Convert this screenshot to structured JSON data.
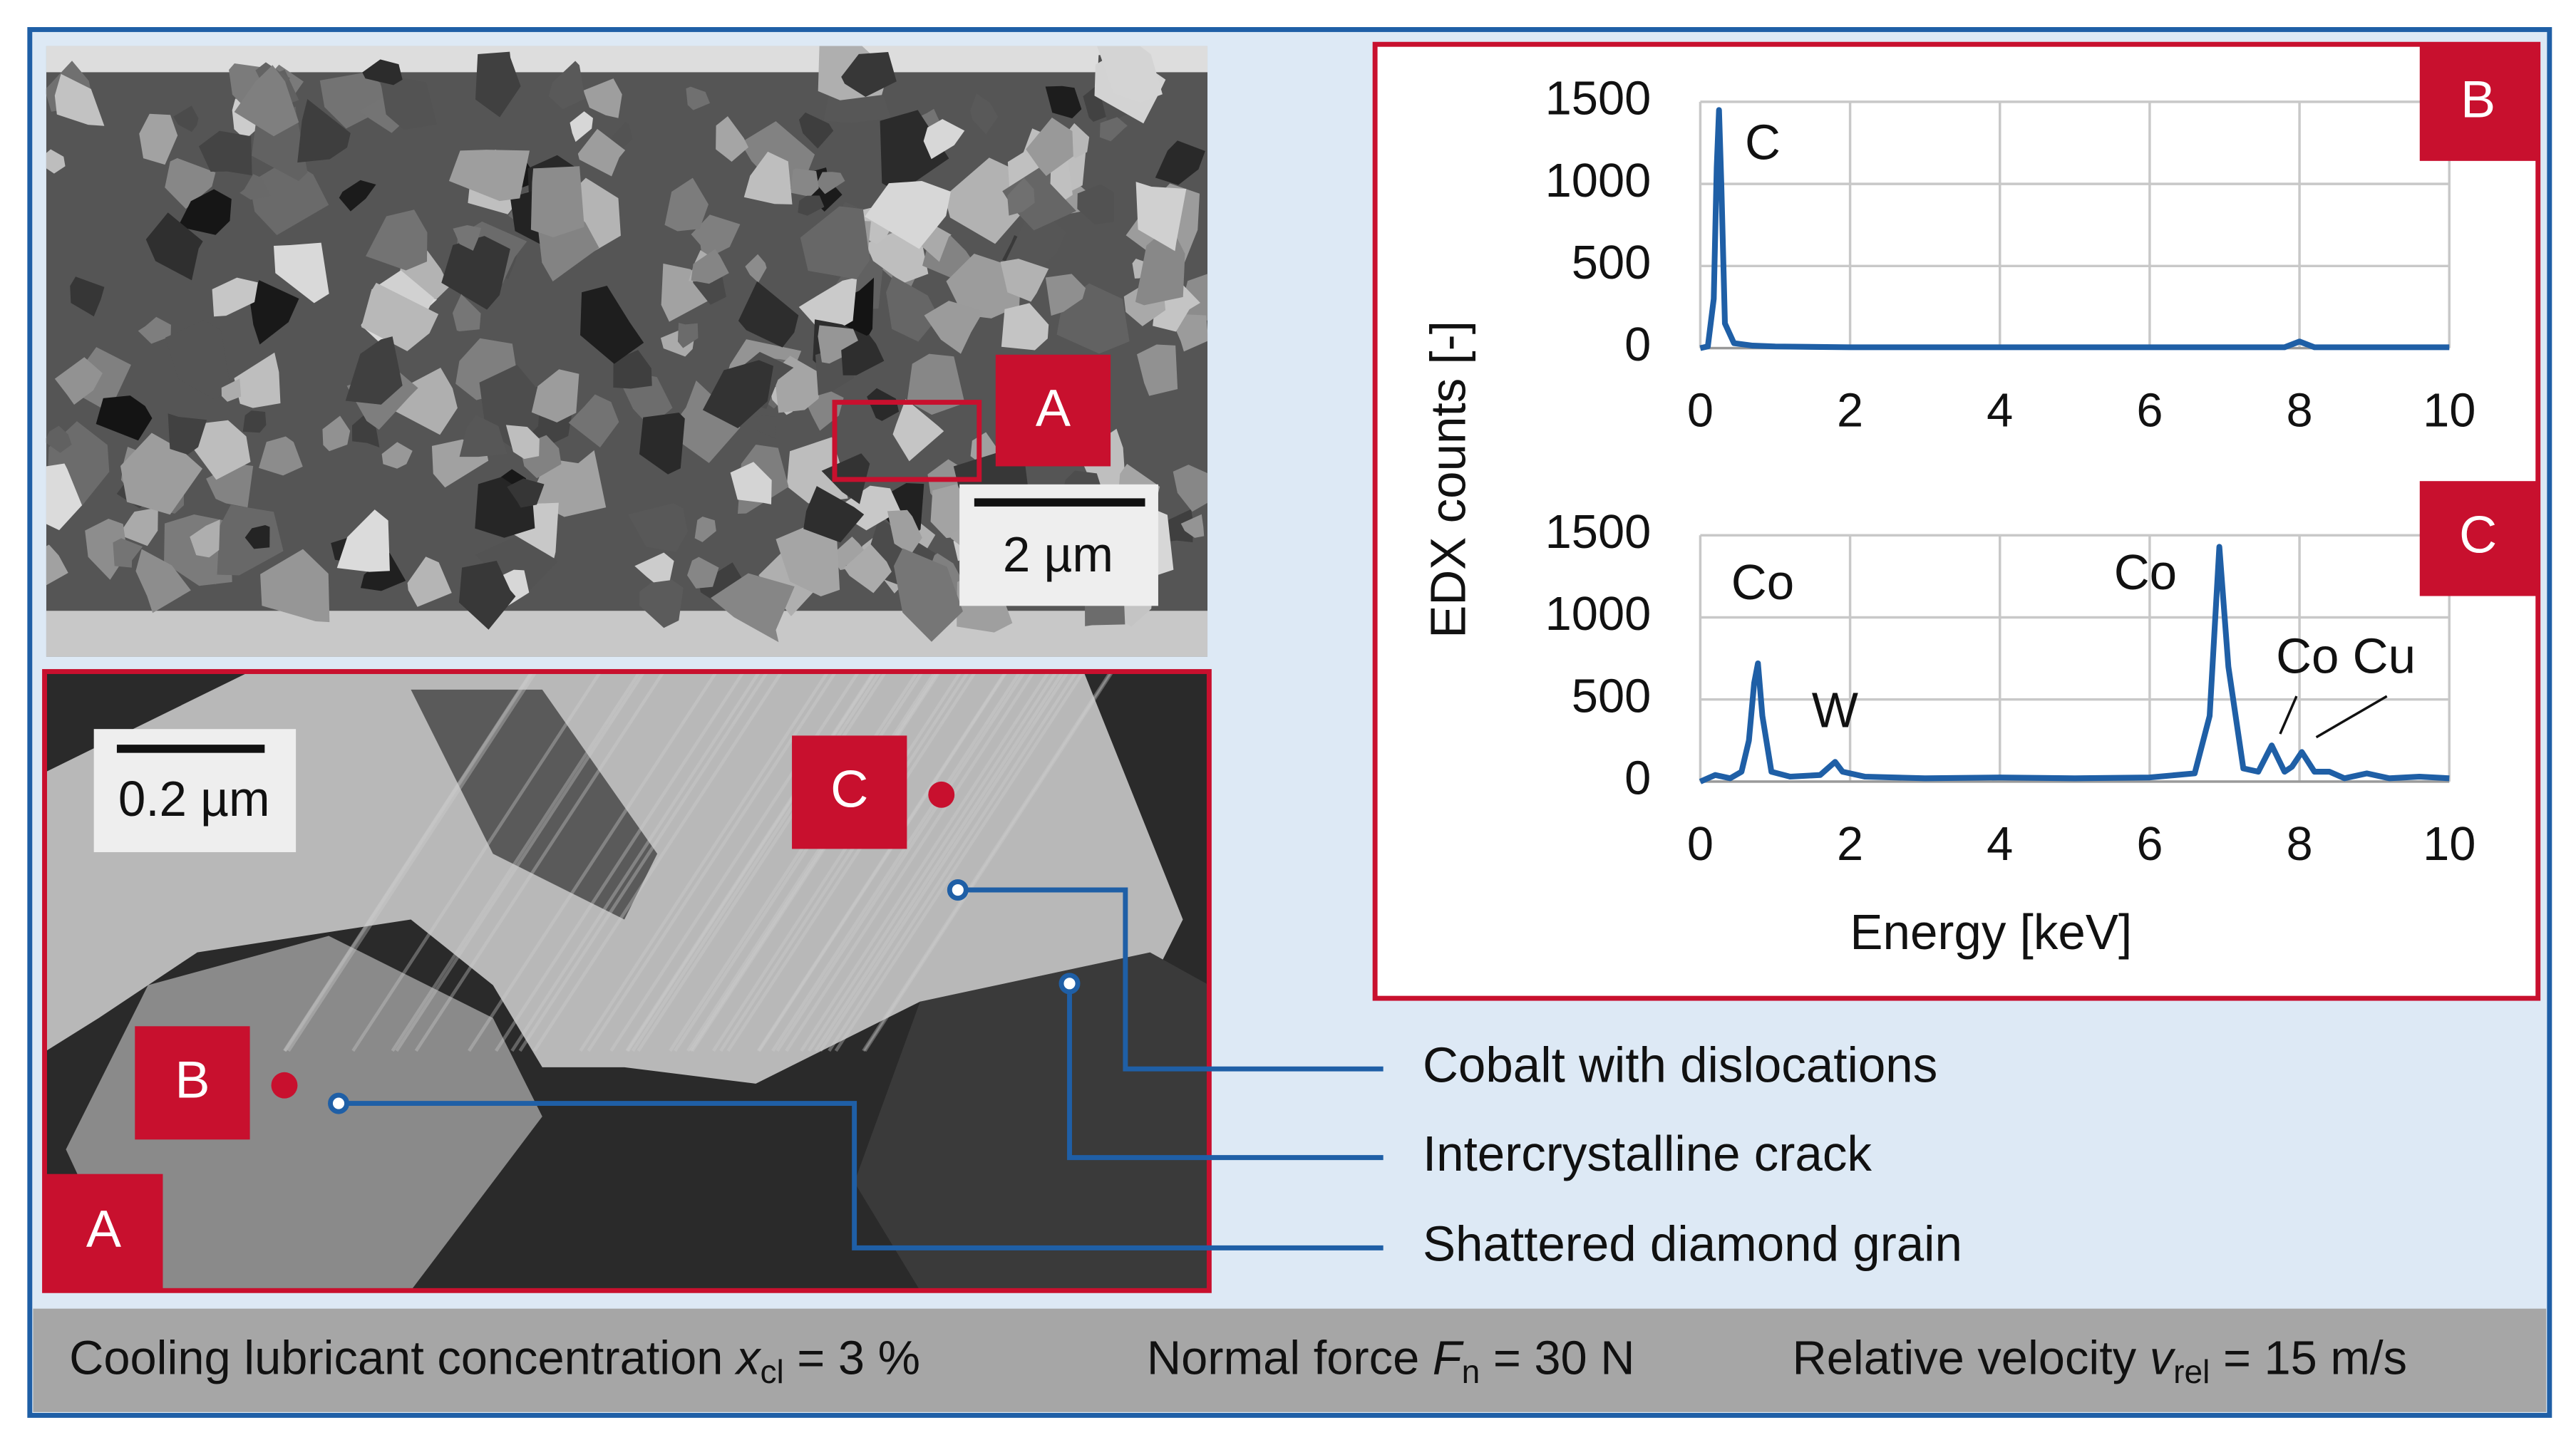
{
  "chart_data": [
    {
      "type": "line",
      "panel": "B",
      "ylabel": "EDX counts [-]",
      "x": [
        0,
        0.1,
        0.18,
        0.22,
        0.25,
        0.28,
        0.33,
        0.45,
        0.7,
        1,
        2,
        4,
        6,
        7.8,
        8.0,
        8.2,
        9,
        10
      ],
      "series": [
        {
          "color": "#1f5fa6",
          "values": [
            0,
            10,
            300,
            1100,
            1450,
            1000,
            150,
            30,
            15,
            10,
            5,
            5,
            5,
            5,
            40,
            5,
            5,
            5
          ]
        }
      ],
      "annotations": [
        "C"
      ],
      "xlim": [
        0,
        10
      ],
      "xticks": [
        0,
        2,
        4,
        6,
        8,
        10
      ],
      "ylim": [
        0,
        1500
      ],
      "yticks": [
        0,
        500,
        1000,
        1500
      ],
      "grid": true
    },
    {
      "type": "line",
      "panel": "C",
      "xlabel": "Energy [keV]",
      "x": [
        0,
        0.2,
        0.4,
        0.55,
        0.65,
        0.72,
        0.77,
        0.83,
        0.95,
        1.2,
        1.6,
        1.75,
        1.8,
        1.9,
        2.2,
        3,
        4,
        5,
        6,
        6.6,
        6.8,
        6.93,
        7.05,
        7.25,
        7.45,
        7.63,
        7.8,
        7.9,
        8.03,
        8.2,
        8.4,
        8.6,
        8.9,
        9.2,
        9.6,
        10
      ],
      "series": [
        {
          "color": "#1f5fa6",
          "values": [
            0,
            40,
            20,
            60,
            250,
            600,
            720,
            400,
            60,
            30,
            40,
            100,
            120,
            60,
            30,
            20,
            25,
            20,
            25,
            50,
            400,
            1430,
            700,
            80,
            60,
            220,
            60,
            90,
            180,
            60,
            60,
            20,
            50,
            20,
            30,
            20
          ]
        }
      ],
      "annotations": [
        "Co",
        "W",
        "Co",
        "Co Cu"
      ],
      "xlim": [
        0,
        10
      ],
      "xticks": [
        0,
        2,
        4,
        6,
        8,
        10
      ],
      "ylim": [
        0,
        1500
      ],
      "yticks": [
        0,
        500,
        1000,
        1500
      ],
      "grid": true
    }
  ],
  "image_labels": {
    "top": "A",
    "bottom_corner": "A",
    "point_b": "B",
    "point_c": "C",
    "scale_top": "2 µm",
    "scale_bottom": "0.2 µm"
  },
  "callouts": [
    "Cobalt with dislocations",
    "Intercrystalline crack",
    "Shattered diamond grain"
  ],
  "footer": [
    {
      "text": "Cooling lubricant concentration ",
      "var": "x",
      "sub": "cl",
      "rest": " = 3 %"
    },
    {
      "text": "Normal force ",
      "var": "F",
      "sub": "n",
      "rest": " = 30 N"
    },
    {
      "text": "Relative velocity ",
      "var": "v",
      "sub": "rel",
      "rest": " = 15 m/s"
    }
  ]
}
